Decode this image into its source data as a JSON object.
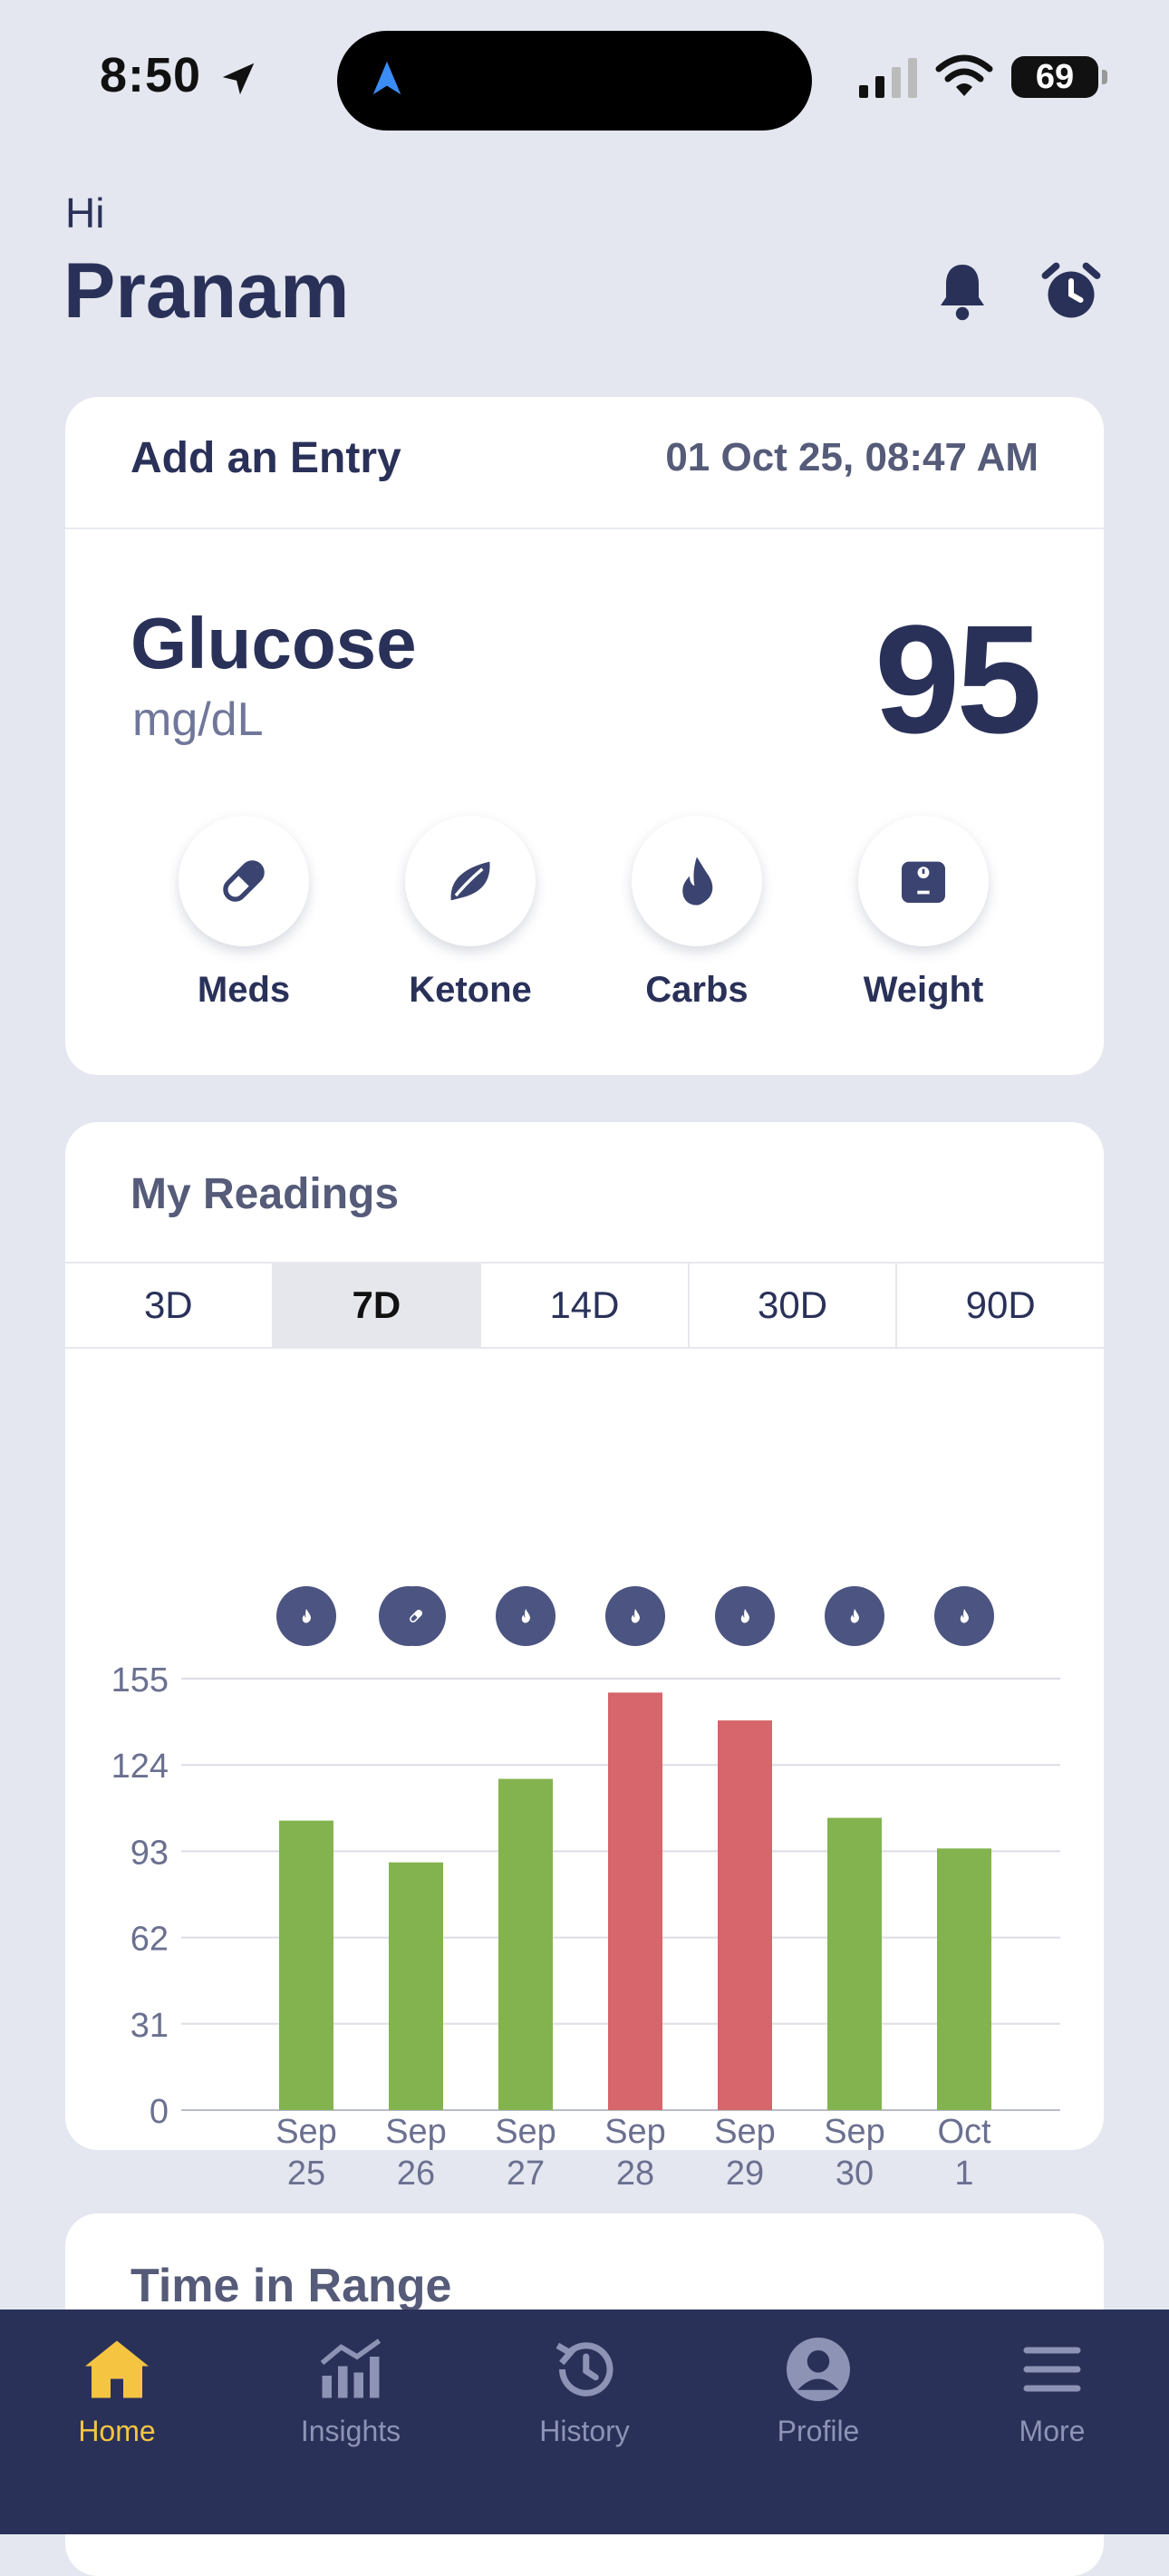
{
  "status": {
    "time": "8:50",
    "battery": "69"
  },
  "header": {
    "greeting": "Hi",
    "name": "Pranam"
  },
  "entry": {
    "title": "Add an Entry",
    "datetime": "01 Oct 25, 08:47 AM",
    "measure_label": "Glucose",
    "unit": "mg/dL",
    "value": "95",
    "actions": [
      {
        "label": "Meds",
        "icon": "pill-icon"
      },
      {
        "label": "Ketone",
        "icon": "leaf-icon"
      },
      {
        "label": "Carbs",
        "icon": "flame-icon"
      },
      {
        "label": "Weight",
        "icon": "scale-icon"
      }
    ]
  },
  "readings": {
    "title": "My Readings",
    "tabs": [
      "3D",
      "7D",
      "14D",
      "30D",
      "90D"
    ],
    "active_tab": "7D"
  },
  "chart_data": {
    "type": "bar",
    "categories": [
      "Sep 25",
      "Sep 26",
      "Sep 27",
      "Sep 28",
      "Sep 29",
      "Sep 30",
      "Oct 1"
    ],
    "values": [
      104,
      89,
      119,
      150,
      140,
      105,
      94
    ],
    "yticks": [
      0,
      31,
      62,
      93,
      124,
      155
    ],
    "ylim": [
      0,
      155
    ],
    "grid": true,
    "colors": {
      "in_range": "#83b34f",
      "high": "#d6666b"
    },
    "status": [
      "in_range",
      "in_range",
      "in_range",
      "high",
      "high",
      "in_range",
      "in_range"
    ],
    "top_icons": [
      "flame-icon",
      "pill-icon",
      "flame-icon",
      "flame-icon",
      "flame-icon",
      "flame-icon",
      "flame-icon"
    ],
    "bottom_icons": [
      "question-icon",
      "running-icon",
      "pill-small-icon",
      "",
      "walking-icon",
      "dumbbell-icon",
      "kick-icon"
    ]
  },
  "time_in_range": {
    "title": "Time in Range"
  },
  "nav": [
    {
      "label": "Home",
      "icon": "home-icon",
      "active": true
    },
    {
      "label": "Insights",
      "icon": "insights-icon",
      "active": false
    },
    {
      "label": "History",
      "icon": "history-icon",
      "active": false
    },
    {
      "label": "Profile",
      "icon": "profile-icon",
      "active": false
    },
    {
      "label": "More",
      "icon": "menu-icon",
      "active": false
    }
  ],
  "theme": {
    "navy": "#2a3159",
    "accent": "#f5c542",
    "background": "#e4e7ef"
  }
}
